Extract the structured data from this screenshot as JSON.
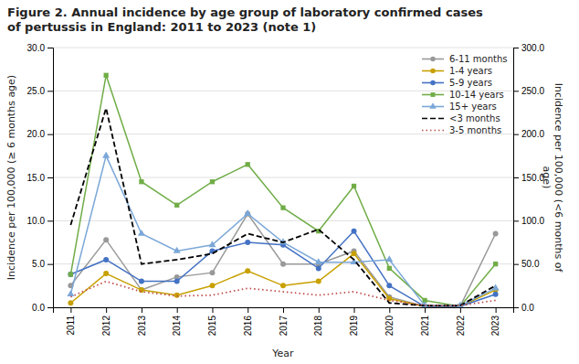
{
  "chart_data": {
    "type": "line",
    "title": "Figure 2. Annual incidence by age group of laboratory confirmed cases\nof pertussis in England: 2011 to 2023 (note 1)",
    "x": [
      2011,
      2012,
      2013,
      2014,
      2015,
      2016,
      2017,
      2018,
      2019,
      2020,
      2021,
      2022,
      2023
    ],
    "x_label": "Year",
    "y_label": "Incidence per 100,000 (≥ 6 months age)",
    "y2_label": "Incidence per 100,000 (<6 months of\nage)",
    "xlim": [
      2010.5,
      2023.5
    ],
    "xticks": [
      2011,
      2012,
      2013,
      2014,
      2015,
      2016,
      2017,
      2018,
      2019,
      2020,
      2021,
      2022,
      2023
    ],
    "ylim": [
      0,
      30
    ],
    "yticks": [
      {
        "value": 0,
        "label": "0.0"
      },
      {
        "value": 5,
        "label": "5.0"
      },
      {
        "value": 10,
        "label": "10.0"
      },
      {
        "value": 15,
        "label": "15.0"
      },
      {
        "value": 20,
        "label": "20.0"
      },
      {
        "value": 25,
        "label": "25.0"
      },
      {
        "value": 30,
        "label": "30.0"
      }
    ],
    "y2lim": [
      0,
      300
    ],
    "y2ticks": [
      {
        "value": 0,
        "label": "0.0"
      },
      {
        "value": 50,
        "label": "50.0"
      },
      {
        "value": 100,
        "label": "100.0"
      },
      {
        "value": 150,
        "label": "150.0"
      },
      {
        "value": 200,
        "label": "200.0"
      },
      {
        "value": 250,
        "label": "250.0"
      },
      {
        "value": 300,
        "label": "300.0"
      }
    ],
    "grid": true,
    "legend": "top-right",
    "series": [
      {
        "name": "6-11 months",
        "color": "#999999",
        "marker": "circle",
        "line_style": "solid",
        "axis": "y",
        "values": [
          2.5,
          7.8,
          2.0,
          3.5,
          4.0,
          10.8,
          5.0,
          5.0,
          6.5,
          1.2,
          0.1,
          0.1,
          8.5
        ]
      },
      {
        "name": "1-4 years",
        "color": "#C8A000",
        "marker": "circle",
        "line_style": "solid",
        "axis": "y",
        "values": [
          0.5,
          3.9,
          2.0,
          1.4,
          2.5,
          4.2,
          2.5,
          3.0,
          6.2,
          1.0,
          0.1,
          0.1,
          2.0
        ]
      },
      {
        "name": "5-9 years",
        "color": "#4472C4",
        "marker": "circle",
        "line_style": "solid",
        "axis": "y",
        "values": [
          3.8,
          5.5,
          3.0,
          3.0,
          6.5,
          7.5,
          7.2,
          4.5,
          8.8,
          2.5,
          0.1,
          0.1,
          1.5
        ]
      },
      {
        "name": "10-14 years",
        "color": "#70AD47",
        "marker": "square",
        "line_style": "solid",
        "axis": "y",
        "values": [
          3.8,
          26.8,
          14.5,
          11.8,
          14.5,
          16.5,
          11.5,
          8.8,
          14.0,
          4.5,
          0.8,
          0.1,
          5.0
        ]
      },
      {
        "name": "15+ years",
        "color": "#7BA7D8",
        "marker": "triangle",
        "line_style": "solid",
        "axis": "y",
        "values": [
          1.5,
          17.5,
          8.5,
          6.5,
          7.2,
          10.8,
          7.5,
          5.2,
          5.2,
          5.5,
          0.2,
          0.2,
          2.2
        ]
      },
      {
        "name": "<3 months",
        "color": "#000000",
        "marker": "none",
        "line_style": "dashed",
        "axis": "y2",
        "values": [
          95,
          230,
          50,
          55,
          62,
          85,
          75,
          90,
          55,
          5,
          2,
          2,
          25
        ]
      },
      {
        "name": "3-5 months",
        "color": "#C0504D",
        "marker": "none",
        "line_style": "dotted",
        "axis": "y2",
        "values": [
          12,
          30,
          18,
          13,
          14,
          22,
          18,
          14,
          18,
          8,
          2,
          2,
          8
        ]
      }
    ]
  }
}
